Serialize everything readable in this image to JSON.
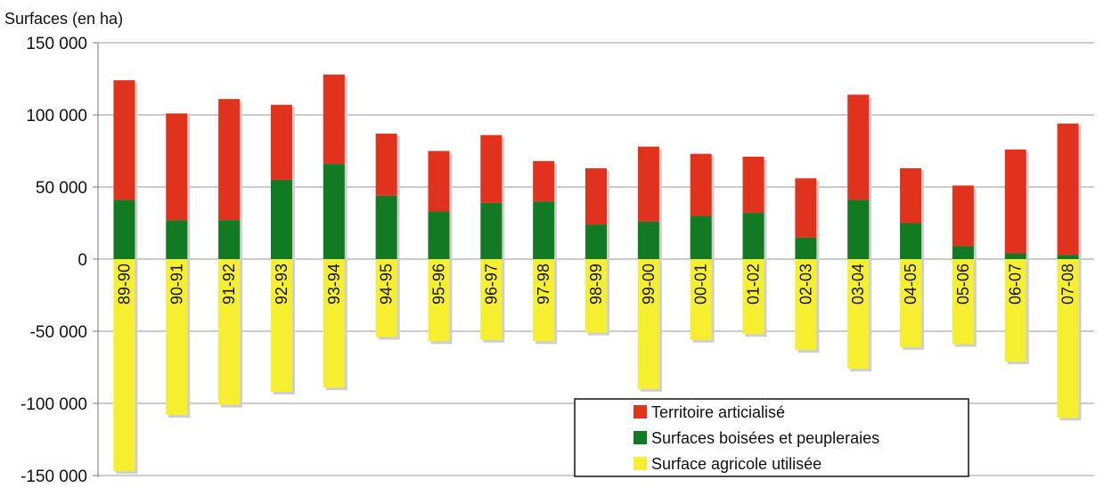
{
  "chart_data": {
    "type": "bar",
    "stacked": true,
    "ylabel": "Surfaces (en ha)",
    "xlabel": "",
    "title": "",
    "ylim": [
      -150000,
      150000
    ],
    "yticks": [
      150000,
      100000,
      50000,
      0,
      -50000,
      -100000,
      -150000
    ],
    "ytick_labels": [
      "150 000",
      "100 000",
      "50 000",
      "0",
      "-50 000",
      "-100 000",
      "-150 000"
    ],
    "grid": true,
    "legend_position": "bottom-right",
    "categories": [
      "89-90",
      "90-91",
      "91-92",
      "92-93",
      "93-94",
      "94-95",
      "95-96",
      "96-97",
      "97-98",
      "98-99",
      "99-00",
      "00-01",
      "01-02",
      "02-03",
      "03-04",
      "04-05",
      "05-06",
      "06-07",
      "07-08"
    ],
    "series": [
      {
        "name": "Territoire articialisé",
        "color": "#e1321e",
        "values": [
          83000,
          74000,
          84000,
          52000,
          62000,
          43000,
          42000,
          47000,
          28000,
          39000,
          52000,
          43000,
          39000,
          41000,
          73000,
          38000,
          42000,
          72000,
          91000
        ]
      },
      {
        "name": "Surfaces boisées et peupleraies",
        "color": "#117a22",
        "values": [
          41000,
          27000,
          27000,
          55000,
          66000,
          44000,
          33000,
          39000,
          40000,
          24000,
          26000,
          30000,
          32000,
          15000,
          41000,
          25000,
          9000,
          4000,
          3000
        ]
      },
      {
        "name": "Surface agricole utilisée",
        "color": "#f5ef30",
        "values": [
          -147000,
          -108000,
          -101000,
          -92000,
          -89000,
          -54000,
          -57000,
          -56000,
          -57000,
          -51000,
          -90000,
          -56000,
          -52000,
          -63000,
          -76000,
          -61000,
          -59000,
          -71000,
          -110000
        ]
      }
    ]
  }
}
